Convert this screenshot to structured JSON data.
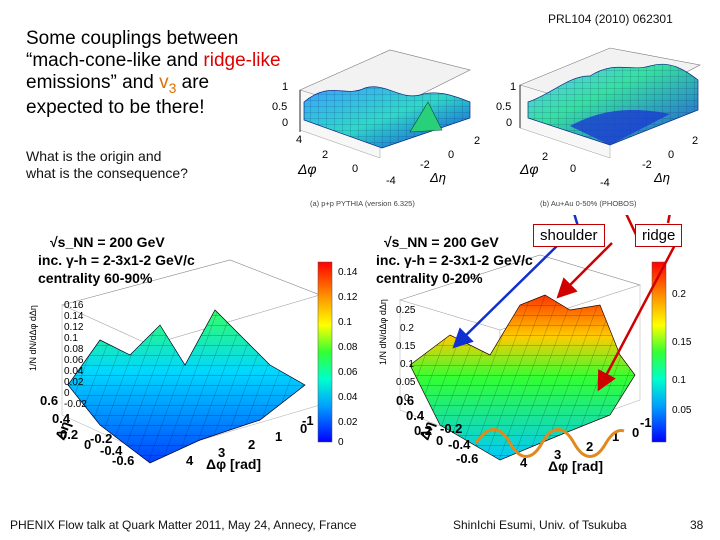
{
  "slide": {
    "title_parts": {
      "p1": "Some couplings between",
      "p2": "“mach-cone-like and ",
      "p3": "ridge-like",
      "p4": "emissions” and ",
      "p5": "v",
      "p6": "3",
      "p7": " are",
      "p8": "expected to be there!"
    },
    "question_lines": [
      "What is the origin and",
      "what is the consequence?"
    ],
    "reference": "PRL104 (2010) 062301",
    "labels": {
      "shoulder": "shoulder",
      "ridge": "ridge"
    },
    "footer": {
      "left": "PHENIX Flow talk at Quark Matter 2011, May 24, Annecy, France",
      "center": "ShinIchi Esumi, Univ. of Tsukuba",
      "page": "38"
    }
  },
  "top_plots": {
    "left": {
      "z_ticks": [
        "1",
        "0.5",
        "0"
      ],
      "phi_ticks": [
        "4",
        "2",
        "0"
      ],
      "eta_ticks": [
        "-2",
        "0",
        "2",
        "-4"
      ],
      "phi_label": "Δφ",
      "eta_label": "Δη",
      "caption": "(a) p+p PYTHIA (version 6.325)"
    },
    "right": {
      "z_ticks": [
        "1",
        "0.5",
        "0"
      ],
      "phi_ticks": [
        "2",
        "0"
      ],
      "eta_ticks": [
        "-2",
        "0",
        "2",
        "-4"
      ],
      "phi_label": "Δφ",
      "eta_label": "Δη",
      "caption": "(b) Au+Au 0-50% (PHOBOS)"
    }
  },
  "bottom_plots": {
    "left": {
      "energy": "√s_NN = 200 GeV",
      "trigger": "inc. γ-h = 2-3x1-2 GeV/c",
      "centrality": "centrality 60-90%",
      "z_ticks": [
        "0.16",
        "0.14",
        "0.12",
        "0.1",
        "0.08",
        "0.06",
        "0.04",
        "0.02",
        "0",
        "-0.02"
      ],
      "colorbar_ticks": [
        "0.14",
        "0.12",
        "0.1",
        "0.08",
        "0.06",
        "0.04",
        "0.02",
        "0"
      ],
      "eta_ticks": [
        "0.6",
        "0.4",
        "0.2",
        "0",
        "-0.2",
        "-0.4",
        "-0.6"
      ],
      "phi_ticks": [
        "4",
        "3",
        "2",
        "1",
        "0",
        "-1"
      ],
      "eta_label": "Δη",
      "phi_label": "Δφ [rad]"
    },
    "right": {
      "energy": "√s_NN = 200 GeV",
      "trigger": "inc. γ-h = 2-3x1-2 GeV/c",
      "centrality": "centrality 0-20%",
      "z_ticks": [
        "0.25",
        "0.2",
        "0.15",
        "0.1",
        "0.05",
        "0"
      ],
      "colorbar_ticks": [
        "0.2",
        "0.15",
        "0.1",
        "0.05"
      ],
      "eta_ticks": [
        "0.6",
        "0.4",
        "0.2",
        "0",
        "-0.2",
        "-0.4",
        "-0.6"
      ],
      "phi_ticks": [
        "4",
        "3",
        "2",
        "1",
        "0",
        "-1"
      ],
      "eta_label": "Δη",
      "phi_label": "Δφ [rad]"
    }
  },
  "colors": {
    "accent_red": "#e00000",
    "accent_orange": "#e07000",
    "arrow_blue": "#1030d0",
    "arrow_red": "#d00000",
    "wave": "#e08a1e"
  }
}
